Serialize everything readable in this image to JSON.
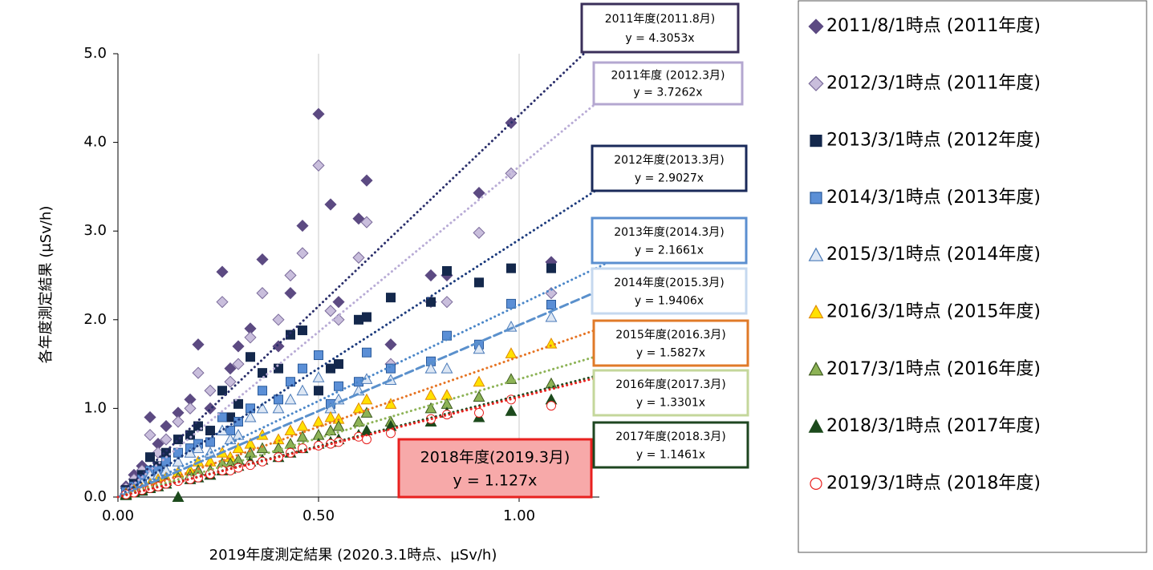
{
  "chart_data": {
    "type": "scatter",
    "xlabel": "2019年度測定結果 (2020.3.1時点、μSv/h)",
    "ylabel": "各年度測定結果 (μSv/h)",
    "xlim": [
      0,
      1.2
    ],
    "ylim": [
      0,
      5
    ],
    "xticks": [
      {
        "value": 0,
        "label": "0.00"
      },
      {
        "value": 0.5,
        "label": "0.50"
      },
      {
        "value": 1,
        "label": "1.00"
      }
    ],
    "yticks": [
      {
        "value": 0,
        "label": "0.0"
      },
      {
        "value": 1,
        "label": "1.0"
      },
      {
        "value": 2,
        "label": "2.0"
      },
      {
        "value": 3,
        "label": "3.0"
      },
      {
        "value": 4,
        "label": "4.0"
      },
      {
        "value": 5,
        "label": "5.0"
      }
    ],
    "xgrid": true,
    "x": [
      0.02,
      0.04,
      0.06,
      0.08,
      0.1,
      0.12,
      0.15,
      0.18,
      0.2,
      0.23,
      0.26,
      0.28,
      0.3,
      0.33,
      0.36,
      0.4,
      0.43,
      0.46,
      0.5,
      0.53,
      0.55,
      0.6,
      0.62,
      0.68,
      0.78,
      0.82,
      0.9,
      0.98,
      1.08
    ],
    "series": [
      {
        "name": "2011/8/1時点 (2011年度)",
        "marker": "diamond",
        "color": "#5c4a82",
        "edge": "#5c4a82",
        "trendline": {
          "label": "2011年度(2011.8月)",
          "equation": "y = 4.3053x",
          "slope": 4.3053,
          "color": "#2b2f6b",
          "dash": "dot",
          "border": "#3a2f5a"
        },
        "values": [
          0.12,
          0.25,
          0.35,
          0.9,
          0.6,
          0.8,
          0.95,
          1.1,
          1.72,
          1.0,
          2.54,
          1.45,
          1.7,
          1.9,
          2.68,
          1.7,
          2.3,
          3.06,
          4.32,
          3.3,
          2.2,
          3.14,
          3.57,
          1.72,
          2.5,
          2.5,
          3.43,
          4.22,
          2.65
        ]
      },
      {
        "name": "2012/3/1時点 (2011年度)",
        "marker": "diamond",
        "color": "#c9bedc",
        "edge": "#7a6a9a",
        "trendline": {
          "label": "2011年度 (2012.3月)",
          "equation": "y = 3.7262x",
          "slope": 3.7262,
          "color": "#b9acd6",
          "dash": "dot",
          "border": "#b4a7d0"
        },
        "values": [
          0.1,
          0.2,
          0.3,
          0.7,
          0.5,
          0.65,
          0.85,
          1.0,
          1.4,
          1.2,
          2.2,
          1.3,
          1.5,
          1.8,
          2.3,
          2.0,
          2.5,
          2.75,
          3.74,
          2.1,
          2.0,
          2.7,
          3.1,
          1.5,
          2.2,
          2.2,
          2.98,
          3.65,
          2.3
        ]
      },
      {
        "name": "2013/3/1時点 (2012年度)",
        "marker": "square",
        "color": "#14284c",
        "edge": "#14284c",
        "trendline": {
          "label": "2012年度(2013.3月)",
          "equation": "y = 2.9027x",
          "slope": 2.9027,
          "color": "#1b3a7c",
          "dash": "dot",
          "border": "#1a2a5a"
        },
        "values": [
          0.08,
          0.15,
          0.25,
          0.45,
          0.35,
          0.5,
          0.65,
          0.7,
          0.8,
          0.75,
          1.2,
          0.9,
          1.05,
          1.58,
          1.4,
          1.45,
          1.83,
          1.88,
          1.2,
          1.45,
          1.5,
          2.0,
          2.03,
          2.25,
          2.2,
          2.55,
          2.42,
          2.58,
          2.58
        ]
      },
      {
        "name": "2014/3/1時点 (2013年度)",
        "marker": "square",
        "color": "#5b8fd6",
        "edge": "#2a5a9a",
        "trendline": {
          "label": "2013年度(2014.3月)",
          "equation": "y = 2.1661x",
          "slope": 2.1661,
          "color": "#4a86c8",
          "dash": "dot",
          "border": "#5b8fd0"
        },
        "values": [
          0.06,
          0.12,
          0.2,
          0.3,
          0.3,
          0.4,
          0.5,
          0.55,
          0.6,
          0.62,
          0.9,
          0.75,
          0.85,
          1.0,
          1.2,
          1.1,
          1.3,
          1.45,
          1.6,
          1.05,
          1.25,
          1.3,
          1.63,
          1.45,
          1.53,
          1.82,
          1.72,
          2.18,
          2.17
        ]
      },
      {
        "name": "2015/3/1時点 (2014年度)",
        "marker": "triangle",
        "color": "#dde7f4",
        "edge": "#4a7ab8",
        "trendline": {
          "label": "2014年度(2015.3月)",
          "equation": "y = 1.9406x",
          "slope": 1.9406,
          "color": "#5a90cc",
          "dash": "dash",
          "border": "#c5d8ef"
        },
        "values": [
          0.05,
          0.1,
          0.15,
          0.25,
          0.25,
          0.3,
          0.4,
          0.5,
          0.55,
          0.5,
          0.75,
          0.65,
          0.7,
          0.9,
          1.0,
          1.0,
          1.1,
          1.2,
          1.35,
          1.0,
          1.1,
          1.2,
          1.33,
          1.32,
          1.45,
          1.45,
          1.67,
          1.92,
          2.03
        ]
      },
      {
        "name": "2016/3/1時点 (2015年度)",
        "marker": "triangle",
        "color": "#ffe100",
        "edge": "#e08a00",
        "trendline": {
          "label": "2015年度(2016.3月)",
          "equation": "y = 1.5827x",
          "slope": 1.5827,
          "color": "#e67322",
          "dash": "dot",
          "border": "#e07a28"
        },
        "values": [
          0.04,
          0.08,
          0.1,
          0.15,
          0.2,
          0.22,
          0.28,
          0.3,
          0.4,
          0.4,
          0.5,
          0.45,
          0.55,
          0.6,
          0.7,
          0.65,
          0.75,
          0.8,
          0.85,
          0.9,
          0.88,
          1.0,
          1.1,
          1.05,
          1.15,
          1.15,
          1.3,
          1.62,
          1.73
        ]
      },
      {
        "name": "2017/3/1時点 (2016年度)",
        "marker": "triangle",
        "color": "#8db356",
        "edge": "#3d5a1e",
        "trendline": {
          "label": "2016年度(2017.3月)",
          "equation": "y = 1.3301x",
          "slope": 1.3301,
          "color": "#8db356",
          "dash": "dot",
          "border": "#c4d79b"
        },
        "values": [
          0.03,
          0.06,
          0.08,
          0.12,
          0.15,
          0.18,
          0.22,
          0.25,
          0.3,
          0.3,
          0.38,
          0.38,
          0.42,
          0.5,
          0.55,
          0.55,
          0.6,
          0.68,
          0.7,
          0.75,
          0.8,
          0.85,
          0.95,
          0.85,
          1.0,
          1.05,
          1.13,
          1.33,
          1.28
        ]
      },
      {
        "name": "2018/3/1時点 (2017年度)",
        "marker": "triangle",
        "color": "#1c4a1c",
        "edge": "#1c4a1c",
        "trendline": {
          "label": "2017年度(2018.3月)",
          "equation": "y = 1.1461x",
          "slope": 1.1461,
          "color": "#1c4a1c",
          "dash": "dot",
          "border": "#1e4620"
        },
        "values": [
          0.02,
          0.05,
          0.07,
          0.1,
          0.12,
          0.15,
          0.0,
          0.2,
          0.22,
          0.25,
          0.3,
          0.32,
          0.35,
          0.4,
          0.42,
          0.45,
          0.5,
          0.55,
          0.6,
          0.62,
          0.65,
          0.7,
          0.75,
          0.8,
          0.85,
          0.95,
          0.9,
          0.97,
          1.1
        ]
      },
      {
        "name": "2019/3/1時点 (2018年度)",
        "marker": "circle",
        "color": "#ffffff",
        "edge": "#e8211f",
        "trendline": {
          "label": "2018年度(2019.3月)",
          "equation": "y = 1.127x",
          "slope": 1.127,
          "color": "#e8211f",
          "dash": "dot",
          "border": "#e8211f",
          "fill": "#f7a9a9"
        },
        "values": [
          0.03,
          0.05,
          0.08,
          0.1,
          0.12,
          0.15,
          0.18,
          0.2,
          0.22,
          0.26,
          0.3,
          0.3,
          0.33,
          0.36,
          0.4,
          0.45,
          0.5,
          0.55,
          0.58,
          0.6,
          0.62,
          0.68,
          0.65,
          0.72,
          0.88,
          0.93,
          0.95,
          1.1,
          1.03
        ]
      }
    ]
  }
}
